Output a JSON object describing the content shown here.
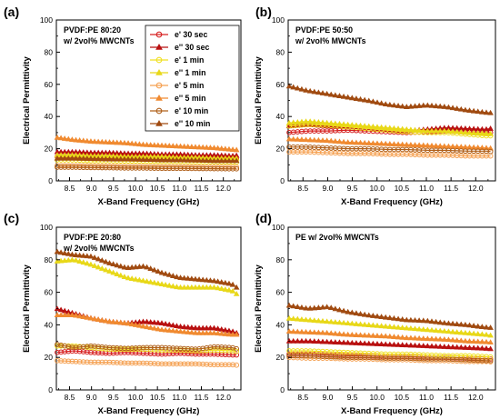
{
  "series_legend": [
    {
      "name": "e' 30 sec",
      "color": "#d62020",
      "marker": "circle"
    },
    {
      "name": "e'' 30 sec",
      "color": "#b81010",
      "marker": "triangle"
    },
    {
      "name": "e' 1 min",
      "color": "#f0e020",
      "marker": "circle"
    },
    {
      "name": "e'' 1 min",
      "color": "#e8d818",
      "marker": "triangle"
    },
    {
      "name": "e' 5 min",
      "color": "#f5a050",
      "marker": "circle"
    },
    {
      "name": "e'' 5 min",
      "color": "#f08a30",
      "marker": "triangle"
    },
    {
      "name": "e' 10 min",
      "color": "#b0601a",
      "marker": "circle"
    },
    {
      "name": "e'' 10 min",
      "color": "#a04a10",
      "marker": "triangle"
    }
  ],
  "chart_data": [
    {
      "type": "line",
      "panel_label": "(a)",
      "note_lines": [
        "PVDF:PE 80:20",
        "w/ 2vol% MWCNTs"
      ],
      "show_legend": true,
      "xlabel": "X-Band Frequency (GHz)",
      "ylabel": "Electrical Permittivity",
      "xlim": [
        8.2,
        12.4
      ],
      "ylim": [
        0,
        100
      ],
      "xticks": [
        "8.5",
        "9.0",
        "9.5",
        "10.0",
        "10.5",
        "11.0",
        "11.5",
        "12.0"
      ],
      "yticks": [
        "0",
        "20",
        "40",
        "60",
        "80",
        "100"
      ],
      "x": [
        8.2,
        8.6,
        9.0,
        9.4,
        9.8,
        10.2,
        10.6,
        11.0,
        11.4,
        11.8,
        12.2,
        12.4
      ],
      "series": [
        {
          "name": "e' 30 sec",
          "values": [
            15,
            15,
            14.8,
            14.5,
            14.5,
            14.3,
            14.2,
            14,
            14,
            13.8,
            13.5,
            13.5
          ]
        },
        {
          "name": "e'' 30 sec",
          "values": [
            18,
            18,
            17.5,
            17.5,
            17,
            17,
            16.5,
            16.5,
            16,
            16,
            15.5,
            16
          ]
        },
        {
          "name": "e' 1 min",
          "values": [
            13,
            13,
            12.5,
            12.5,
            12.3,
            12.2,
            12,
            12,
            11.8,
            11.8,
            11.5,
            11.5
          ]
        },
        {
          "name": "e'' 1 min",
          "values": [
            16,
            16,
            15.5,
            15.5,
            15,
            15,
            15,
            14.5,
            14.5,
            14,
            14,
            14
          ]
        },
        {
          "name": "e' 5 min",
          "values": [
            9.5,
            9.5,
            9.3,
            9.2,
            9,
            9,
            8.8,
            8.8,
            8.7,
            8.6,
            8.5,
            8.5
          ]
        },
        {
          "name": "e'' 5 min",
          "values": [
            27,
            25.5,
            24.5,
            24,
            23.5,
            22.5,
            22,
            21.5,
            21,
            20.5,
            19.5,
            19
          ]
        },
        {
          "name": "e' 10 min",
          "values": [
            8.5,
            8.5,
            8.3,
            8.2,
            8,
            8,
            7.8,
            7.8,
            7.7,
            7.6,
            7.5,
            7.5
          ]
        },
        {
          "name": "e'' 10 min",
          "values": [
            14,
            14,
            13.8,
            13.5,
            13.5,
            13.3,
            13,
            13,
            12.8,
            12.5,
            12.5,
            12.5
          ]
        }
      ]
    },
    {
      "type": "line",
      "panel_label": "(b)",
      "note_lines": [
        "PVDF:PE 50:50",
        "w/ 2vol% MWCNTs"
      ],
      "show_legend": false,
      "xlabel": "X-Band Frequency (GHz)",
      "ylabel": "Electrical Permittivity",
      "xlim": [
        8.2,
        12.4
      ],
      "ylim": [
        0,
        100
      ],
      "xticks": [
        "8.5",
        "9.0",
        "9.5",
        "10.0",
        "10.5",
        "11.0",
        "11.5",
        "12.0"
      ],
      "yticks": [
        "0",
        "20",
        "40",
        "60",
        "80",
        "100"
      ],
      "x": [
        8.2,
        8.6,
        9.0,
        9.4,
        9.8,
        10.2,
        10.6,
        11.0,
        11.4,
        11.8,
        12.2,
        12.4
      ],
      "series": [
        {
          "name": "e' 30 sec",
          "values": [
            30,
            31,
            31,
            31.5,
            31,
            30.5,
            30,
            30.5,
            31,
            30.5,
            30,
            30
          ]
        },
        {
          "name": "e'' 30 sec",
          "values": [
            34,
            35,
            34,
            34,
            33,
            32,
            31,
            32,
            33,
            32.5,
            32,
            33
          ]
        },
        {
          "name": "e' 1 min",
          "values": [
            34,
            35,
            34.5,
            33.5,
            32.5,
            31.5,
            30.5,
            30,
            30,
            29,
            28,
            28
          ]
        },
        {
          "name": "e'' 1 min",
          "values": [
            36,
            37,
            36,
            35,
            34,
            33,
            32,
            31,
            31,
            30,
            29.5,
            29
          ]
        },
        {
          "name": "e' 5 min",
          "values": [
            18,
            18,
            17.5,
            17,
            17,
            16.5,
            16.5,
            16,
            16,
            15.5,
            15.5,
            15.5
          ]
        },
        {
          "name": "e'' 5 min",
          "values": [
            26,
            25.5,
            25,
            24,
            23.5,
            23,
            22.5,
            22,
            21.5,
            21,
            20.5,
            20
          ]
        },
        {
          "name": "e' 10 min",
          "values": [
            21,
            21,
            20.5,
            20,
            20,
            19.5,
            19.5,
            19,
            19,
            18.5,
            18.5,
            18
          ]
        },
        {
          "name": "e'' 10 min",
          "values": [
            59,
            56,
            54,
            52,
            50,
            47.5,
            46,
            47,
            46,
            44,
            42.5,
            42
          ]
        }
      ]
    },
    {
      "type": "line",
      "panel_label": "(c)",
      "note_lines": [
        "PVDF:PE 20:80",
        "w/ 2vol% MWCNTs"
      ],
      "show_legend": false,
      "xlabel": "X-Band Frequency (GHz)",
      "ylabel": "Electrical Permittivity",
      "xlim": [
        8.2,
        12.4
      ],
      "ylim": [
        0,
        100
      ],
      "xticks": [
        "8.5",
        "9.0",
        "9.5",
        "10.0",
        "10.5",
        "11.0",
        "11.5",
        "12.0"
      ],
      "yticks": [
        "0",
        "20",
        "40",
        "60",
        "80",
        "100"
      ],
      "x": [
        8.2,
        8.6,
        9.0,
        9.4,
        9.8,
        10.2,
        10.6,
        11.0,
        11.4,
        11.8,
        12.2,
        12.4
      ],
      "series": [
        {
          "name": "e' 30 sec",
          "values": [
            23,
            24,
            23,
            22.5,
            23,
            22.5,
            22,
            22.5,
            22,
            22,
            21.5,
            21.5
          ]
        },
        {
          "name": "e'' 30 sec",
          "values": [
            50,
            47,
            44,
            42,
            41,
            42,
            41,
            39,
            38,
            38,
            36,
            34
          ]
        },
        {
          "name": "e' 1 min",
          "values": [
            27,
            27,
            26,
            25,
            25,
            25,
            24.5,
            24.5,
            24,
            24.5,
            24,
            23.5
          ]
        },
        {
          "name": "e'' 1 min",
          "values": [
            79,
            80,
            77,
            73,
            69,
            67,
            65,
            63,
            63,
            63,
            61,
            57
          ]
        },
        {
          "name": "e' 5 min",
          "values": [
            18,
            17.5,
            17,
            17,
            16.5,
            16.5,
            16,
            16,
            16,
            15.5,
            15.5,
            15
          ]
        },
        {
          "name": "e'' 5 min",
          "values": [
            46,
            46,
            44,
            42,
            41,
            39,
            37,
            36,
            35,
            35,
            34,
            34
          ]
        },
        {
          "name": "e' 10 min",
          "values": [
            28,
            26,
            27,
            26,
            25.5,
            26,
            26,
            25.5,
            25,
            26.5,
            26,
            24.5
          ]
        },
        {
          "name": "e'' 10 min",
          "values": [
            85,
            83,
            82,
            78,
            75,
            76,
            72,
            69,
            68,
            67,
            65,
            61
          ]
        }
      ]
    },
    {
      "type": "line",
      "panel_label": "(d)",
      "note_lines": [
        "PE w/ 2vol% MWCNTs"
      ],
      "show_legend": false,
      "xlabel": "X-Band Frequency (GHz)",
      "ylabel": "Electrical Permittivity",
      "xlim": [
        8.2,
        12.4
      ],
      "ylim": [
        0,
        100
      ],
      "xticks": [
        "8.5",
        "9.0",
        "9.5",
        "10.0",
        "10.5",
        "11.0",
        "11.5",
        "12.0"
      ],
      "yticks": [
        "0",
        "20",
        "40",
        "60",
        "80",
        "100"
      ],
      "x": [
        8.2,
        8.6,
        9.0,
        9.4,
        9.8,
        10.2,
        10.6,
        11.0,
        11.4,
        11.8,
        12.2,
        12.4
      ],
      "series": [
        {
          "name": "e' 30 sec",
          "values": [
            22,
            22,
            21.5,
            21,
            21,
            20.5,
            20.5,
            20,
            20,
            19.5,
            19,
            19
          ]
        },
        {
          "name": "e'' 30 sec",
          "values": [
            30,
            30,
            29.5,
            29,
            28.5,
            28,
            27.5,
            27,
            26.5,
            26,
            25.5,
            25
          ]
        },
        {
          "name": "e' 1 min",
          "values": [
            24,
            24,
            23.5,
            23,
            22.5,
            22,
            22,
            21.5,
            21,
            21,
            20.5,
            20
          ]
        },
        {
          "name": "e'' 1 min",
          "values": [
            44,
            43,
            42,
            41,
            40,
            39,
            38,
            37,
            36,
            35,
            34,
            33
          ]
        },
        {
          "name": "e' 5 min",
          "values": [
            20,
            19.5,
            19.5,
            19,
            19,
            18.5,
            18.5,
            18,
            18,
            17.5,
            17.5,
            17
          ]
        },
        {
          "name": "e'' 5 min",
          "values": [
            36,
            35.5,
            35,
            34,
            33.5,
            33,
            32,
            31.5,
            31,
            30,
            29.5,
            29
          ]
        },
        {
          "name": "e' 10 min",
          "values": [
            21,
            21,
            20.5,
            20,
            20,
            19.5,
            19.5,
            19,
            19,
            18.5,
            18,
            18
          ]
        },
        {
          "name": "e'' 10 min",
          "values": [
            52,
            50,
            51,
            48,
            46,
            44.5,
            43,
            42.5,
            41,
            40,
            38.5,
            38
          ]
        }
      ]
    }
  ]
}
